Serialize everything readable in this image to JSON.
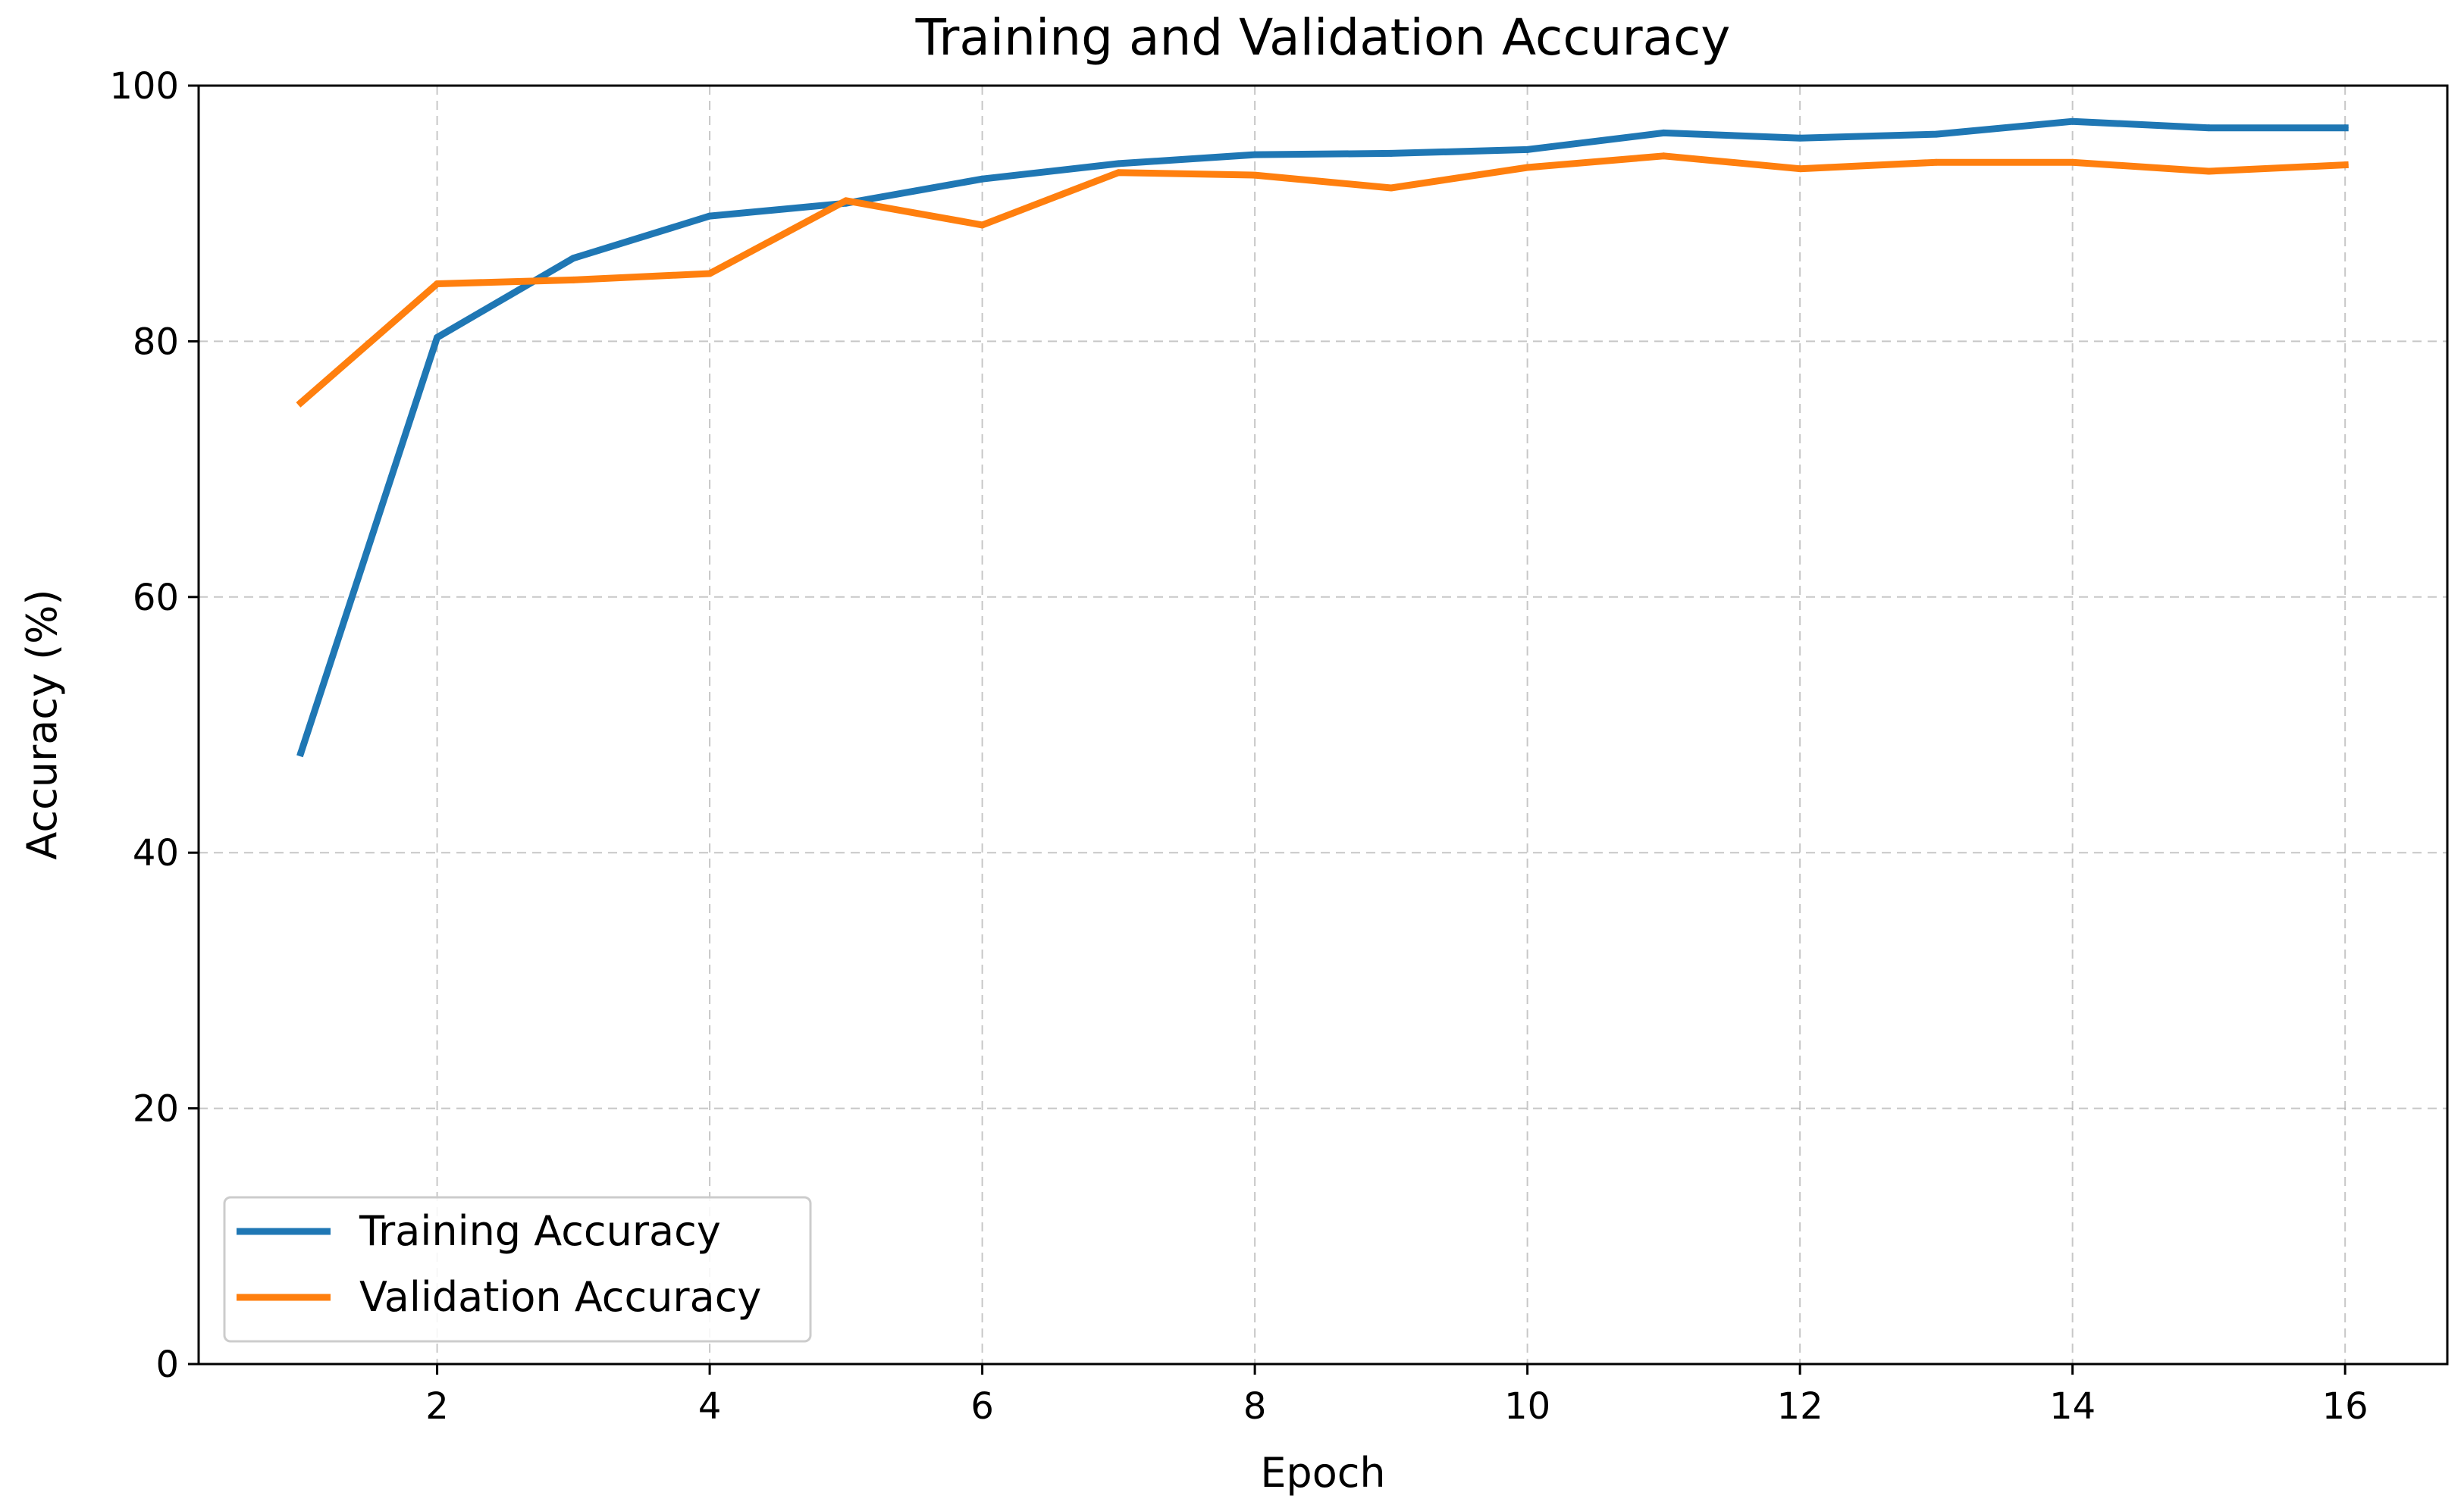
{
  "chart_data": {
    "type": "line",
    "title": "Training and Validation Accuracy",
    "xlabel": "Epoch",
    "ylabel": "Accuracy (%)",
    "x": [
      1,
      2,
      3,
      4,
      5,
      6,
      7,
      8,
      9,
      10,
      11,
      12,
      13,
      14,
      15,
      16
    ],
    "xlim": [
      0.25,
      16.75
    ],
    "ylim": [
      0,
      100
    ],
    "xticks": [
      2,
      4,
      6,
      8,
      10,
      12,
      14,
      16
    ],
    "xtick_labels": [
      "2",
      "4",
      "6",
      "8",
      "10",
      "12",
      "14",
      "16"
    ],
    "yticks": [
      0,
      20,
      40,
      60,
      80,
      100
    ],
    "ytick_labels": [
      "0",
      "20",
      "40",
      "60",
      "80",
      "100"
    ],
    "grid": true,
    "legend_position": "lower-left",
    "series": [
      {
        "name": "Training Accuracy",
        "color": "#1f77b4",
        "values": [
          47.8,
          80.3,
          86.5,
          89.8,
          90.8,
          92.7,
          93.9,
          94.6,
          94.7,
          95.0,
          96.3,
          95.9,
          96.2,
          97.2,
          96.7,
          96.7
        ]
      },
      {
        "name": "Validation Accuracy",
        "color": "#ff7f0e",
        "values": [
          75.2,
          84.5,
          84.8,
          85.3,
          91.0,
          89.1,
          93.2,
          93.0,
          92.0,
          93.6,
          94.5,
          93.5,
          94.0,
          94.0,
          93.3,
          93.8
        ]
      }
    ]
  }
}
